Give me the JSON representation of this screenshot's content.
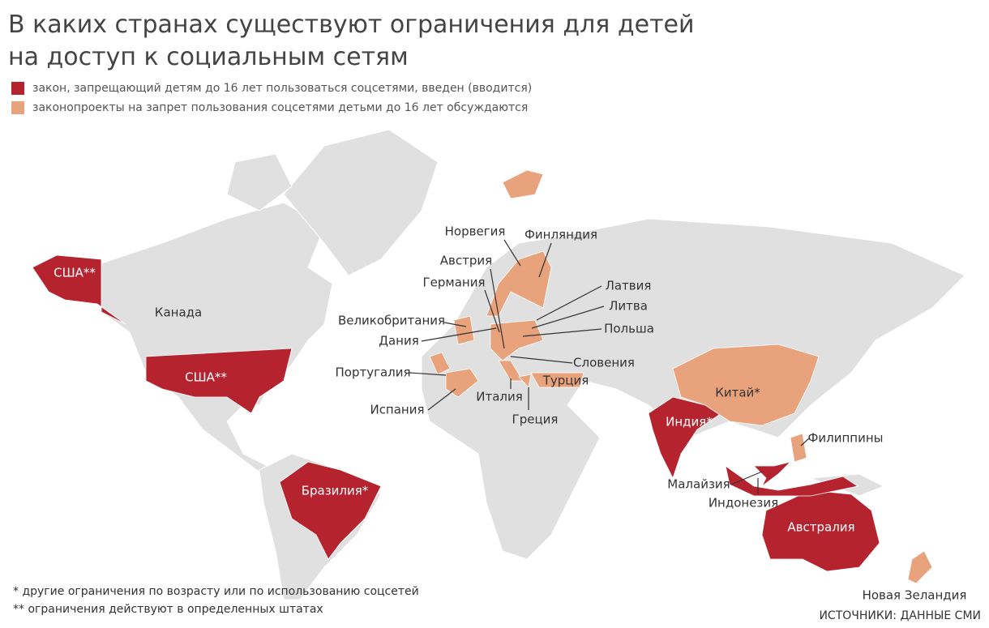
{
  "header": {
    "title": [
      "В каких странах существуют ограничения для детей",
      "на доступ к социальным сетям"
    ]
  },
  "legend": [
    {
      "label": "закон, запрещающий детям до 16 лет пользоваться соцсетями, введен (вводится)",
      "color": "#b5232f",
      "countries": [
        "США**",
        "США**",
        "Бразилия*",
        "Индия*",
        "Австралия",
        "Малайзия",
        "Индонезия"
      ]
    },
    {
      "label": "законопроекты на запрет пользования соцсетями детьми до 16 лет обсуждаются",
      "color": "#e8a27c",
      "countries": [
        "Норвегия",
        "Финляндия",
        "Австрия",
        "Германия",
        "Латвия",
        "Литва",
        "Польша",
        "Великобритания",
        "Дания",
        "Словения",
        "Португалия",
        "Турция",
        "Италия",
        "Испания",
        "Греция",
        "Китай*",
        "Филиппины",
        "Новая Зеландия"
      ]
    }
  ],
  "map": {
    "land_color": "#e0e0e0",
    "other_labels": [
      "Канада"
    ]
  },
  "footnotes": [
    "* другие ограничения по возрасту или по использованию соцсетей",
    "** ограничения действуют в определенных штатах"
  ],
  "source": "ИСТОЧНИКИ: ДАННЫЕ СМИ"
}
